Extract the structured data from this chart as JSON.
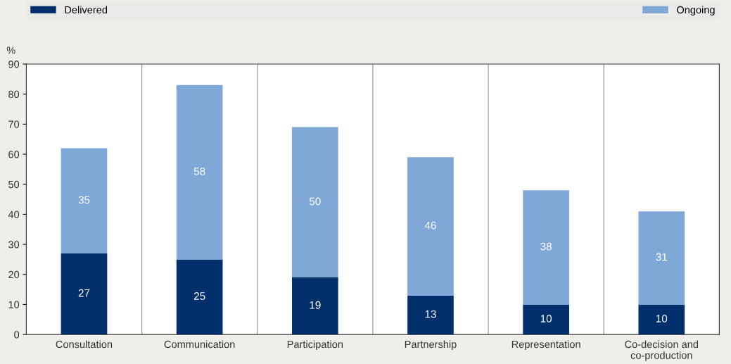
{
  "chart_data": {
    "type": "bar",
    "stacked": true,
    "ylabel": "%",
    "categories": [
      "Consultation",
      "Communication",
      "Participation",
      "Partnership",
      "Representation",
      "Co-decision and\nco-production"
    ],
    "series": [
      {
        "name": "Delivered",
        "color": "#002f6c",
        "values": [
          27,
          25,
          19,
          13,
          10,
          10
        ]
      },
      {
        "name": "Ongoing",
        "color": "#7fa8d9",
        "values": [
          35,
          58,
          50,
          46,
          38,
          31
        ]
      }
    ],
    "ylim": [
      0,
      90
    ],
    "yticks": [
      0,
      10,
      20,
      30,
      40,
      50,
      60,
      70,
      80,
      90
    ],
    "grid": "x",
    "legend": "top",
    "data_labels": true
  }
}
